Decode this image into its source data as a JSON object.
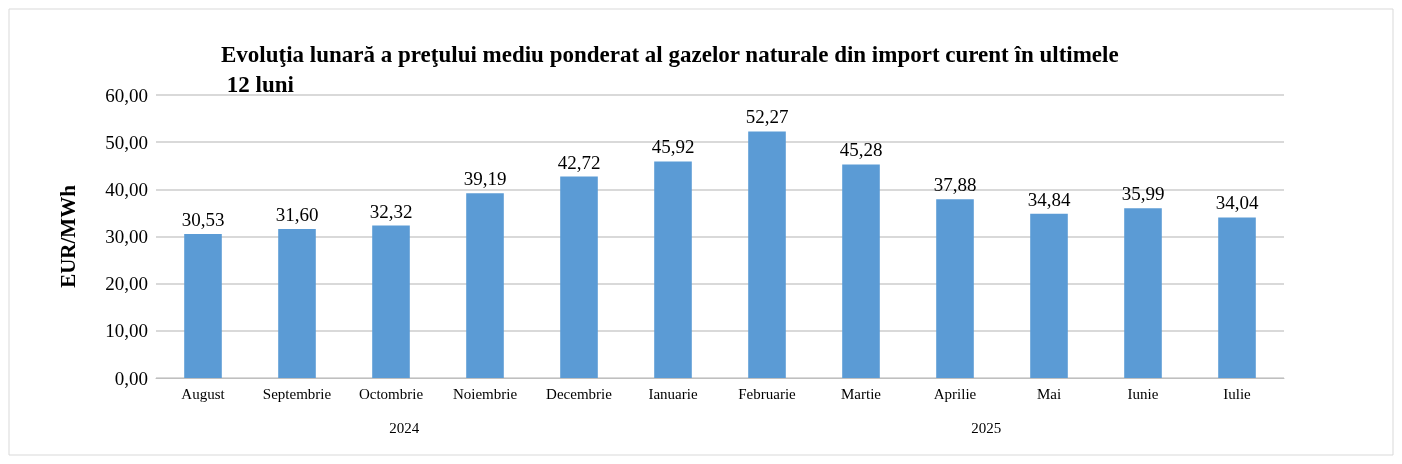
{
  "chart_data": {
    "type": "bar",
    "title": "Evoluţia lunară a preţului mediu ponderat al gazelor naturale din import curent în ultimele 12 luni",
    "ylabel": "EUR/MWh",
    "categories": [
      "August",
      "Septembrie",
      "Octombrie",
      "Noiembrie",
      "Decembrie",
      "Ianuarie",
      "Februarie",
      "Martie",
      "Aprilie",
      "Mai",
      "Iunie",
      "Iulie"
    ],
    "values": [
      30.53,
      31.6,
      32.32,
      39.19,
      42.72,
      45.92,
      52.27,
      45.28,
      37.88,
      34.84,
      35.99,
      34.04
    ],
    "value_labels": [
      "30,53",
      "31,60",
      "32,32",
      "39,19",
      "42,72",
      "45,92",
      "52,27",
      "45,28",
      "37,88",
      "34,84",
      "35,99",
      "34,04"
    ],
    "color": "#5b9bd5",
    "ylim": [
      0,
      60
    ],
    "yticks": [
      {
        "value": 0,
        "label": "0,00"
      },
      {
        "value": 10,
        "label": "10,00"
      },
      {
        "value": 20,
        "label": "20,00"
      },
      {
        "value": 30,
        "label": "30,00"
      },
      {
        "value": 40,
        "label": "40,00"
      },
      {
        "value": 50,
        "label": "50,00"
      },
      {
        "value": 60,
        "label": "60,00"
      }
    ],
    "grid": "y",
    "annotations": [
      "2024",
      "2025"
    ]
  }
}
